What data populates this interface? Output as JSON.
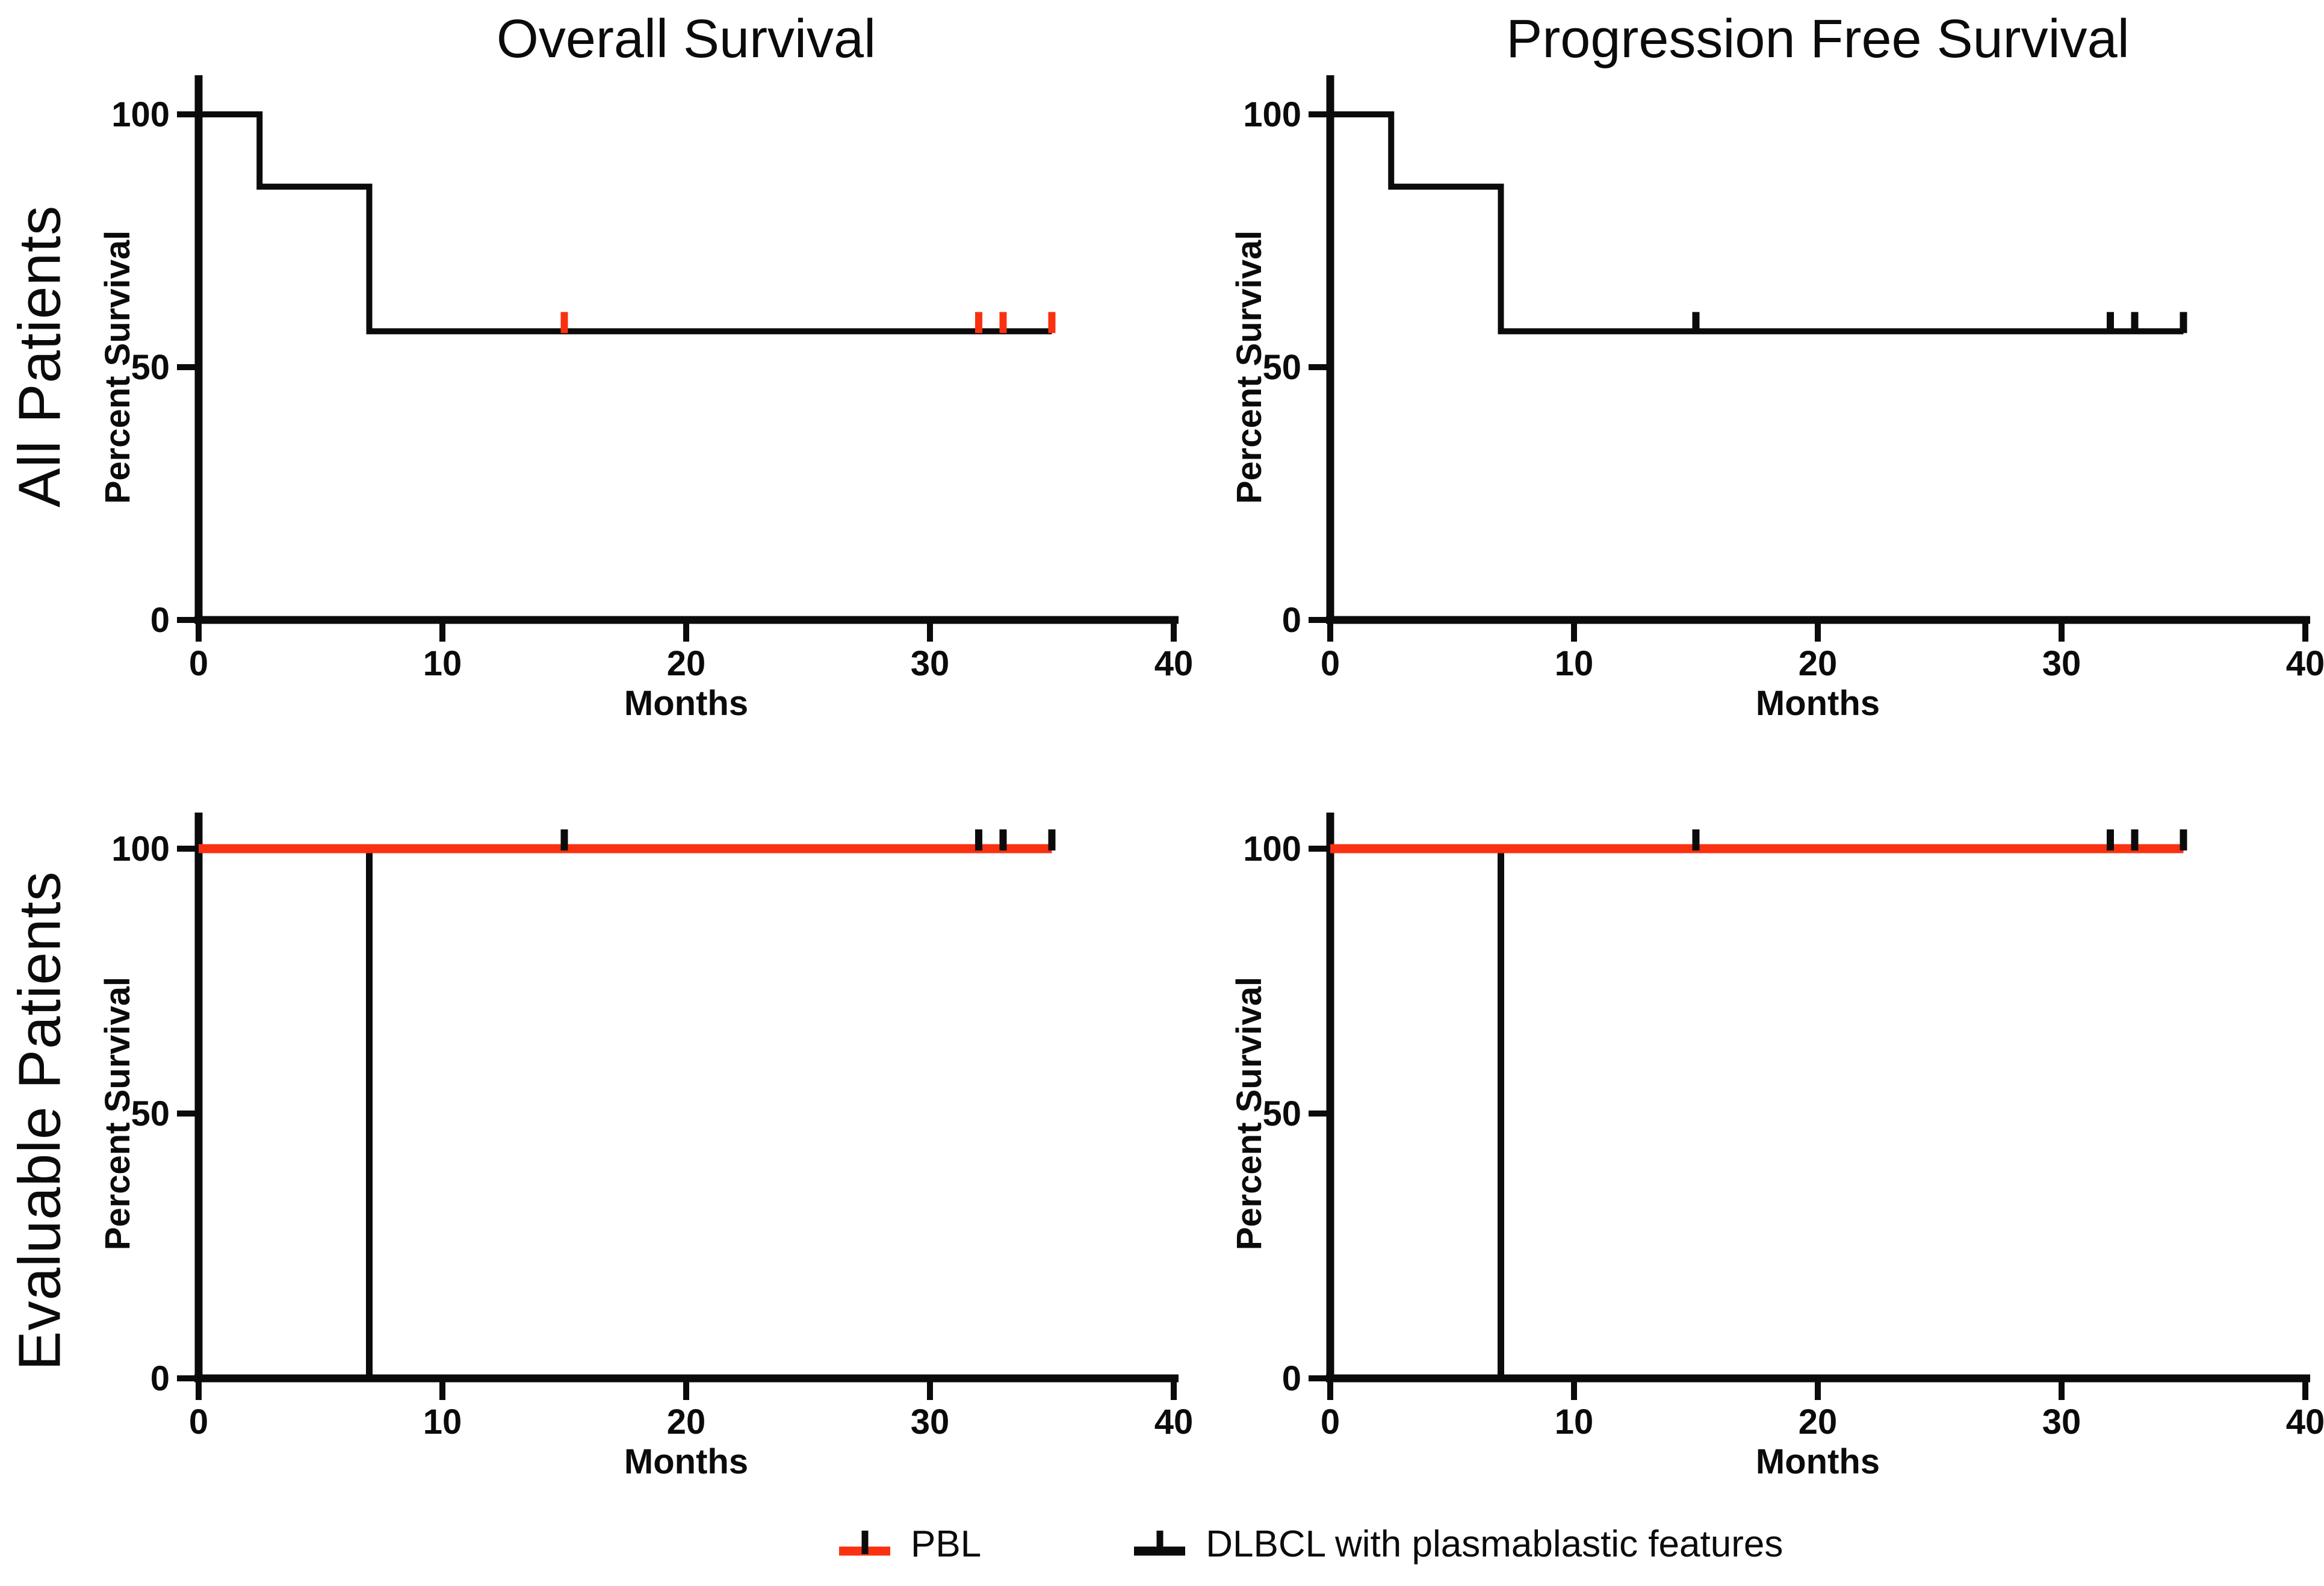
{
  "figure": {
    "row_labels": [
      "All Patients",
      "Evaluable Patients"
    ],
    "column_titles": [
      "Overall Survival",
      "Progression Free Survival"
    ],
    "colors": {
      "pbl": "#f93111",
      "dlbcl": "#0b0b0b",
      "axis": "#0b0b0b"
    },
    "legend": [
      {
        "label": "PBL",
        "line_color": "#f93111",
        "tick_color": "#0b0b0b"
      },
      {
        "label": "DLBCL with plasmablastic features",
        "line_color": "#0b0b0b",
        "tick_color": "#0b0b0b"
      }
    ]
  },
  "chart_data": [
    {
      "id": "os-all-patients",
      "type": "line",
      "subtype": "kaplan-meier-step",
      "title": "Overall Survival",
      "row_label": "All Patients",
      "xlabel": "Months",
      "ylabel": "Percent Survival",
      "xlim": [
        0,
        40
      ],
      "ylim": [
        0,
        100
      ],
      "xticks": [
        0,
        10,
        20,
        30,
        40
      ],
      "yticks": [
        0,
        50,
        100
      ],
      "grid": false,
      "legend_position": "none",
      "series": [
        {
          "name": "All Patients",
          "color": "#0b0b0b",
          "line_width": 10,
          "steps": [
            [
              0,
              100
            ],
            [
              2.5,
              100
            ],
            [
              2.5,
              85.7
            ],
            [
              7,
              85.7
            ],
            [
              7,
              57.1
            ],
            [
              35,
              57.1
            ]
          ],
          "censor_marks": {
            "x": [
              15,
              32,
              33,
              35
            ],
            "y": 57.1,
            "color": "#f93111"
          }
        }
      ]
    },
    {
      "id": "pfs-all-patients",
      "type": "line",
      "subtype": "kaplan-meier-step",
      "title": "Progression Free Survival",
      "row_label": "All Patients",
      "xlabel": "Months",
      "ylabel": "Percent Survival",
      "xlim": [
        0,
        40
      ],
      "ylim": [
        0,
        100
      ],
      "xticks": [
        0,
        10,
        20,
        30,
        40
      ],
      "yticks": [
        0,
        50,
        100
      ],
      "grid": false,
      "legend_position": "none",
      "series": [
        {
          "name": "All Patients",
          "color": "#0b0b0b",
          "line_width": 10,
          "steps": [
            [
              0,
              100
            ],
            [
              2.5,
              100
            ],
            [
              2.5,
              85.7
            ],
            [
              7,
              85.7
            ],
            [
              7,
              57.1
            ],
            [
              35,
              57.1
            ]
          ],
          "censor_marks": {
            "x": [
              15,
              32,
              33,
              35
            ],
            "y": 57.1,
            "color": "#0b0b0b"
          }
        }
      ]
    },
    {
      "id": "os-evaluable-patients",
      "type": "line",
      "subtype": "kaplan-meier-step",
      "title": "",
      "row_label": "Evaluable Patients",
      "xlabel": "Months",
      "ylabel": "Percent Survival",
      "xlim": [
        0,
        40
      ],
      "ylim": [
        0,
        100
      ],
      "xticks": [
        0,
        10,
        20,
        30,
        40
      ],
      "yticks": [
        0,
        50,
        100
      ],
      "grid": false,
      "legend_position": "bottom",
      "series": [
        {
          "name": "DLBCL with plasmablastic features",
          "color": "#0b0b0b",
          "line_width": 11,
          "steps": [
            [
              0,
              100
            ],
            [
              7,
              100
            ],
            [
              7,
              0
            ]
          ]
        },
        {
          "name": "PBL",
          "color": "#f93111",
          "line_width": 15,
          "steps": [
            [
              0,
              100
            ],
            [
              35,
              100
            ]
          ],
          "censor_marks": {
            "x": [
              15,
              32,
              33,
              35
            ],
            "y": 100,
            "color": "#0b0b0b"
          }
        }
      ]
    },
    {
      "id": "pfs-evaluable-patients",
      "type": "line",
      "subtype": "kaplan-meier-step",
      "title": "",
      "row_label": "Evaluable Patients",
      "xlabel": "Months",
      "ylabel": "Percent Survival",
      "xlim": [
        0,
        40
      ],
      "ylim": [
        0,
        100
      ],
      "xticks": [
        0,
        10,
        20,
        30,
        40
      ],
      "yticks": [
        0,
        50,
        100
      ],
      "grid": false,
      "legend_position": "bottom",
      "series": [
        {
          "name": "DLBCL with plasmablastic features",
          "color": "#0b0b0b",
          "line_width": 11,
          "steps": [
            [
              0,
              100
            ],
            [
              7,
              100
            ],
            [
              7,
              0
            ]
          ]
        },
        {
          "name": "PBL",
          "color": "#f93111",
          "line_width": 15,
          "steps": [
            [
              0,
              100
            ],
            [
              35,
              100
            ]
          ],
          "censor_marks": {
            "x": [
              15,
              32,
              33,
              35
            ],
            "y": 100,
            "color": "#0b0b0b"
          }
        }
      ]
    }
  ]
}
